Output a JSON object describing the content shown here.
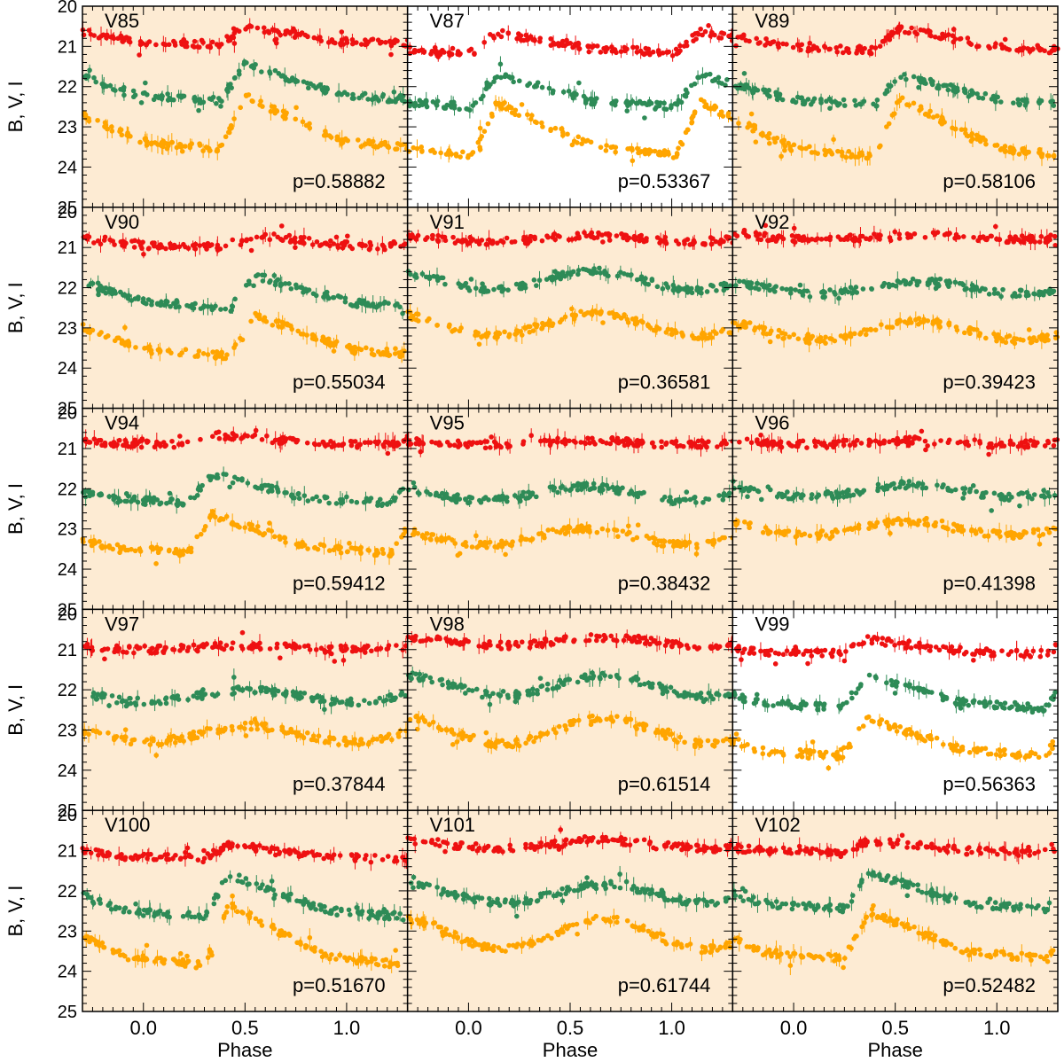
{
  "chart_data": {
    "type": "scatter",
    "xlabel": "Phase",
    "ylabel": "B, V, I",
    "xlim": [
      -0.3,
      1.3
    ],
    "ylim": [
      25,
      20
    ],
    "xticks": [
      "0.0",
      "0.5",
      "1.0"
    ],
    "yticks": [
      "20",
      "21",
      "22",
      "23",
      "24",
      "25"
    ],
    "colors": {
      "I": "#ee1111",
      "V": "#2e8b57",
      "B": "#ffa500",
      "shade": "#fdebd3",
      "frame": "#000000"
    },
    "series_note": "red = I band (~21 mag), green = V band (~22 mag), orange = B band (~23 mag)",
    "panels": [
      {
        "name": "V85",
        "period_label": "p=0.58882",
        "shaded": true,
        "shape": "rrab",
        "rise": 0.38,
        "base": [
          20.95,
          22.35,
          23.55
        ],
        "amp": [
          0.45,
          0.9,
          1.3
        ]
      },
      {
        "name": "V87",
        "period_label": "p=0.53367",
        "shaded": false,
        "shape": "rrab",
        "rise": 0.02,
        "base": [
          21.15,
          22.5,
          23.7
        ],
        "amp": [
          0.5,
          0.8,
          1.3
        ]
      },
      {
        "name": "V89",
        "period_label": "p=0.58106",
        "shaded": true,
        "shape": "rrab",
        "rise": 0.4,
        "base": [
          21.1,
          22.45,
          23.75
        ],
        "amp": [
          0.55,
          0.75,
          1.45
        ]
      },
      {
        "name": "V90",
        "period_label": "p=0.55034",
        "shaded": true,
        "shape": "rrab",
        "rise": 0.43,
        "base": [
          21.0,
          22.5,
          23.7
        ],
        "amp": [
          0.3,
          0.8,
          1.0
        ]
      },
      {
        "name": "V91",
        "period_label": "p=0.36581",
        "shaded": true,
        "shape": "rrc",
        "rise": 0.3,
        "base": [
          20.85,
          22.05,
          23.2
        ],
        "amp": [
          0.15,
          0.45,
          0.55
        ]
      },
      {
        "name": "V92",
        "period_label": "p=0.39423",
        "shaded": true,
        "shape": "rrc",
        "rise": 0.3,
        "base": [
          20.8,
          22.15,
          23.3
        ],
        "amp": [
          0.12,
          0.3,
          0.45
        ]
      },
      {
        "name": "V94",
        "period_label": "p=0.59412",
        "shaded": true,
        "shape": "rrab",
        "rise": 0.22,
        "base": [
          20.9,
          22.35,
          23.6
        ],
        "amp": [
          0.25,
          0.7,
          0.95
        ]
      },
      {
        "name": "V95",
        "period_label": "p=0.38432",
        "shaded": true,
        "shape": "rrc",
        "rise": 0.25,
        "base": [
          20.9,
          22.3,
          23.4
        ],
        "amp": [
          0.1,
          0.35,
          0.4
        ]
      },
      {
        "name": "V96",
        "period_label": "p=0.41398",
        "shaded": true,
        "shape": "rrc",
        "rise": 0.25,
        "base": [
          20.9,
          22.2,
          23.15
        ],
        "amp": [
          0.1,
          0.3,
          0.35
        ]
      },
      {
        "name": "V97",
        "period_label": "p=0.37844",
        "shaded": true,
        "shape": "rrc",
        "rise": 0.2,
        "base": [
          21.0,
          22.3,
          23.3
        ],
        "amp": [
          0.1,
          0.3,
          0.4
        ]
      },
      {
        "name": "V98",
        "period_label": "p=0.61514",
        "shaded": true,
        "shape": "rrc",
        "rise": 0.35,
        "base": [
          20.9,
          22.15,
          23.35
        ],
        "amp": [
          0.2,
          0.5,
          0.65
        ]
      },
      {
        "name": "V99",
        "period_label": "p=0.56363",
        "shaded": false,
        "shape": "rrab",
        "rise": 0.24,
        "base": [
          21.1,
          22.45,
          23.65
        ],
        "amp": [
          0.35,
          0.8,
          0.95
        ]
      },
      {
        "name": "V100",
        "period_label": "p=0.51670",
        "shaded": true,
        "shape": "rrab",
        "rise": 0.3,
        "base": [
          21.2,
          22.65,
          23.85
        ],
        "amp": [
          0.35,
          1.05,
          1.5
        ]
      },
      {
        "name": "V101",
        "period_label": "p=0.61744",
        "shaded": true,
        "shape": "rrc",
        "rise": 0.35,
        "base": [
          20.95,
          22.3,
          23.45
        ],
        "amp": [
          0.2,
          0.45,
          0.75
        ]
      },
      {
        "name": "V102",
        "period_label": "p=0.52482",
        "shaded": true,
        "shape": "rrab",
        "rise": 0.25,
        "base": [
          21.05,
          22.45,
          23.7
        ],
        "amp": [
          0.3,
          0.9,
          1.2
        ]
      }
    ]
  }
}
